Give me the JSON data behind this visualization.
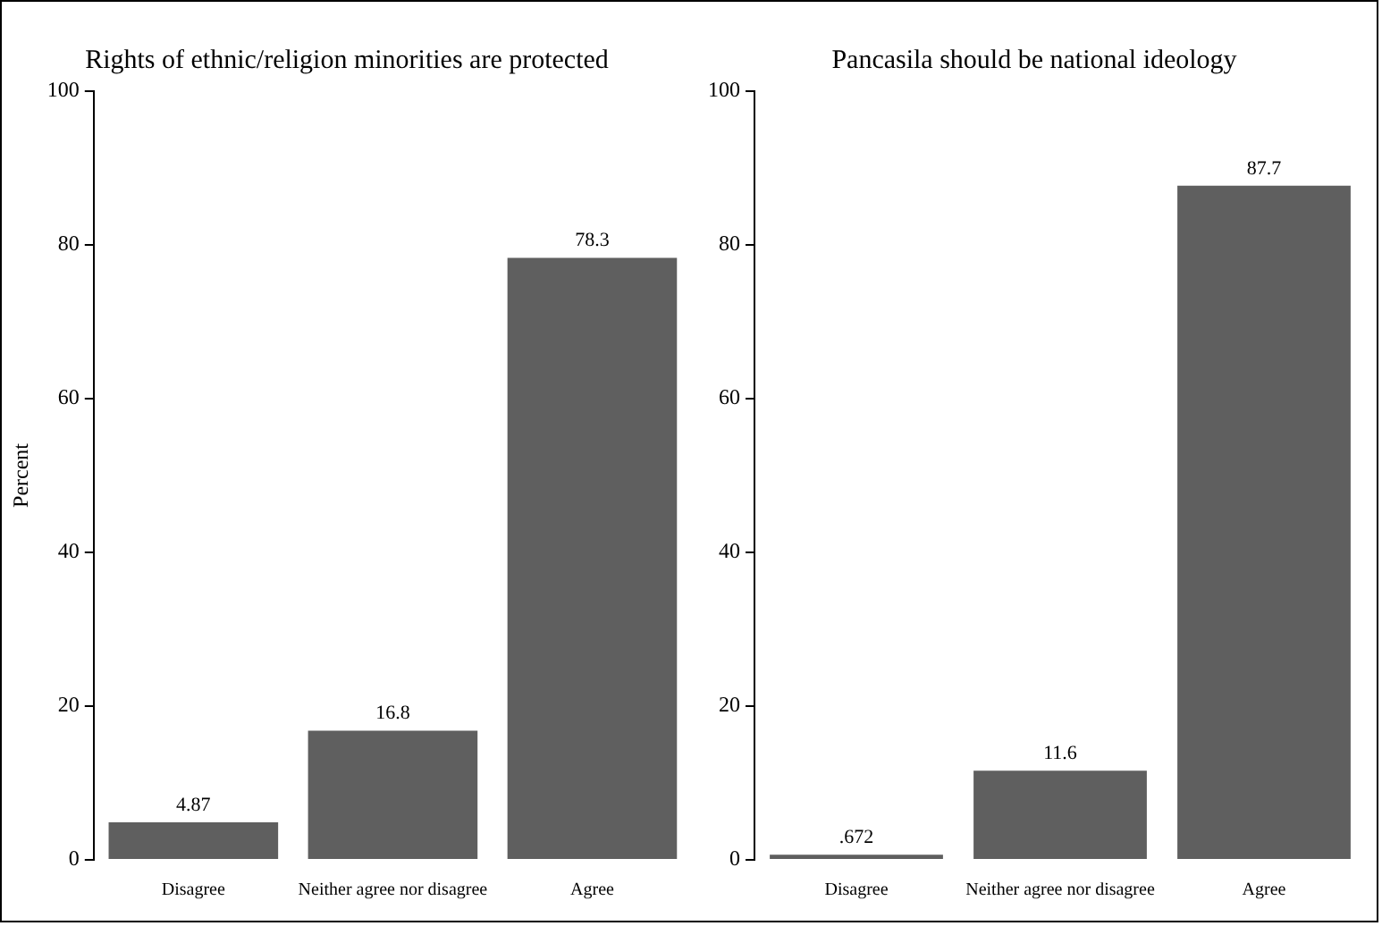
{
  "chart_data": [
    {
      "type": "bar",
      "title": "Rights of ethnic/religion minorities are protected",
      "ylabel": "Percent",
      "categories": [
        "Disagree",
        "Neither agree nor disagree",
        "Agree"
      ],
      "values": [
        4.87,
        16.8,
        78.3
      ],
      "value_labels": [
        "4.87",
        "16.8",
        "78.3"
      ],
      "color": "#5f5f5f",
      "ylim": [
        0,
        100
      ],
      "yticks": [
        0,
        20,
        40,
        60,
        80,
        100
      ],
      "grid": false,
      "legend": false
    },
    {
      "type": "bar",
      "title": "Pancasila should be national ideology",
      "categories": [
        "Disagree",
        "Neither agree nor disagree",
        "Agree"
      ],
      "values": [
        0.672,
        11.6,
        87.7
      ],
      "value_labels": [
        ".672",
        "11.6",
        "87.7"
      ],
      "color": "#5f5f5f",
      "ylim": [
        0,
        100
      ],
      "yticks": [
        0,
        20,
        40,
        60,
        80,
        100
      ],
      "grid": false,
      "legend": false
    }
  ]
}
